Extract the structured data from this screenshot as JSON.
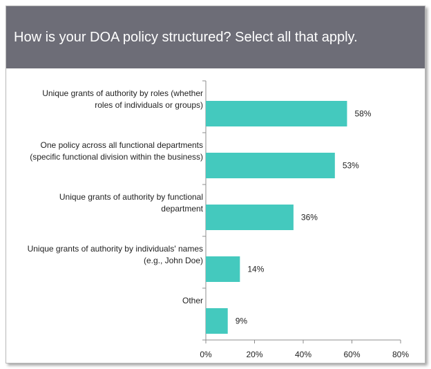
{
  "header": {
    "title": "How is your DOA policy structured? Select all that apply."
  },
  "colors": {
    "header_bg": "#6d6d77",
    "bar": "#44c9be",
    "axis": "#8c8c8c"
  },
  "chart_data": {
    "type": "bar",
    "orientation": "horizontal",
    "categories": [
      [
        "Unique grants of authority by roles (whether",
        "roles of individuals or groups)"
      ],
      [
        "One policy across all functional departments",
        "(specific functional division within the business)"
      ],
      [
        "Unique grants of authority by functional",
        "department"
      ],
      [
        "Unique grants of authority by individuals' names",
        "(e.g., John Doe)"
      ],
      [
        "Other"
      ]
    ],
    "values": [
      58,
      53,
      36,
      14,
      9
    ],
    "value_labels": [
      "58%",
      "53%",
      "36%",
      "14%",
      "9%"
    ],
    "xlim": [
      0,
      80
    ],
    "xticks": [
      0,
      20,
      40,
      60,
      80
    ],
    "xtick_labels": [
      "0%",
      "20%",
      "40%",
      "60%",
      "80%"
    ],
    "grid": false,
    "legend": "none"
  }
}
